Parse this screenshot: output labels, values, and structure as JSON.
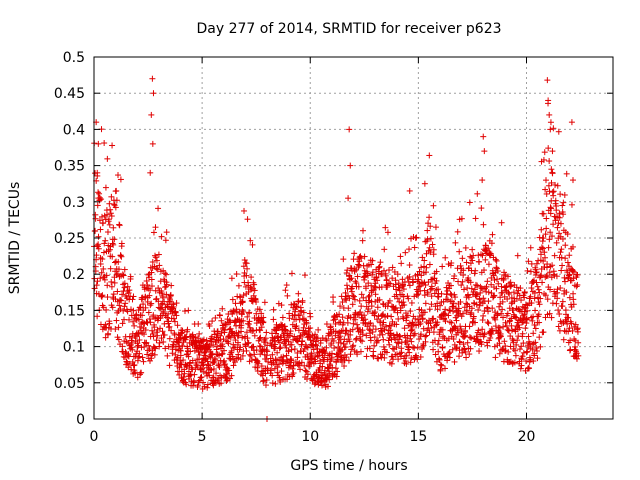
{
  "chart_data": {
    "type": "scatter",
    "title": "Day 277 of 2014, SRMTID for receiver p623",
    "xlabel": "GPS time / hours",
    "ylabel": "SRMTID / TECUs",
    "xlim": [
      0,
      24
    ],
    "ylim": [
      0,
      0.5
    ],
    "xticks": [
      0,
      5,
      10,
      15,
      20
    ],
    "xtick_labels": [
      "0",
      "5",
      "10",
      "15",
      "20"
    ],
    "yticks": [
      0,
      0.05,
      0.1,
      0.15,
      0.2,
      0.25,
      0.3,
      0.35,
      0.4,
      0.45,
      0.5
    ],
    "ytick_labels": [
      "0",
      "0.05",
      "0.1",
      "0.15",
      "0.2",
      "0.25",
      "0.3",
      "0.35",
      "0.4",
      "0.45",
      "0.5"
    ],
    "grid": true,
    "marker": "+",
    "color": "#e00000",
    "points_per_hour": 120,
    "x_end": 22.4,
    "gap": [
      8.05,
      8.15
    ],
    "baseline_profile": [
      [
        0.0,
        0.24
      ],
      [
        0.5,
        0.2
      ],
      [
        1.0,
        0.22
      ],
      [
        1.5,
        0.13
      ],
      [
        2.0,
        0.1
      ],
      [
        2.5,
        0.14
      ],
      [
        3.0,
        0.17
      ],
      [
        3.5,
        0.13
      ],
      [
        4.0,
        0.09
      ],
      [
        5.0,
        0.075
      ],
      [
        6.0,
        0.09
      ],
      [
        6.5,
        0.11
      ],
      [
        7.0,
        0.16
      ],
      [
        7.5,
        0.12
      ],
      [
        8.0,
        0.08
      ],
      [
        9.0,
        0.1
      ],
      [
        9.5,
        0.12
      ],
      [
        10.0,
        0.09
      ],
      [
        10.7,
        0.075
      ],
      [
        11.5,
        0.12
      ],
      [
        12.0,
        0.16
      ],
      [
        13.0,
        0.15
      ],
      [
        14.0,
        0.13
      ],
      [
        15.0,
        0.14
      ],
      [
        15.5,
        0.2
      ],
      [
        16.0,
        0.12
      ],
      [
        17.0,
        0.15
      ],
      [
        18.0,
        0.17
      ],
      [
        19.0,
        0.14
      ],
      [
        20.0,
        0.12
      ],
      [
        20.5,
        0.15
      ],
      [
        21.0,
        0.26
      ],
      [
        21.5,
        0.22
      ],
      [
        22.0,
        0.17
      ],
      [
        22.4,
        0.13
      ]
    ],
    "spikes": [
      {
        "x": 0.1,
        "y": 0.41
      },
      {
        "x": 0.2,
        "y": 0.38
      },
      {
        "x": 0.15,
        "y": 0.34
      },
      {
        "x": 2.7,
        "y": 0.47
      },
      {
        "x": 2.75,
        "y": 0.45
      },
      {
        "x": 2.65,
        "y": 0.42
      },
      {
        "x": 2.72,
        "y": 0.38
      },
      {
        "x": 2.6,
        "y": 0.34
      },
      {
        "x": 11.8,
        "y": 0.4
      },
      {
        "x": 11.85,
        "y": 0.35
      },
      {
        "x": 11.75,
        "y": 0.305
      },
      {
        "x": 14.6,
        "y": 0.315
      },
      {
        "x": 15.3,
        "y": 0.325
      },
      {
        "x": 18.0,
        "y": 0.39
      },
      {
        "x": 18.05,
        "y": 0.37
      },
      {
        "x": 17.95,
        "y": 0.33
      },
      {
        "x": 21.0,
        "y": 0.44
      },
      {
        "x": 21.05,
        "y": 0.42
      },
      {
        "x": 21.1,
        "y": 0.4
      },
      {
        "x": 21.2,
        "y": 0.37
      },
      {
        "x": 21.15,
        "y": 0.345
      },
      {
        "x": 22.1,
        "y": 0.41
      },
      {
        "x": 22.15,
        "y": 0.33
      },
      {
        "x": 8.0,
        "y": 0.0
      }
    ]
  }
}
